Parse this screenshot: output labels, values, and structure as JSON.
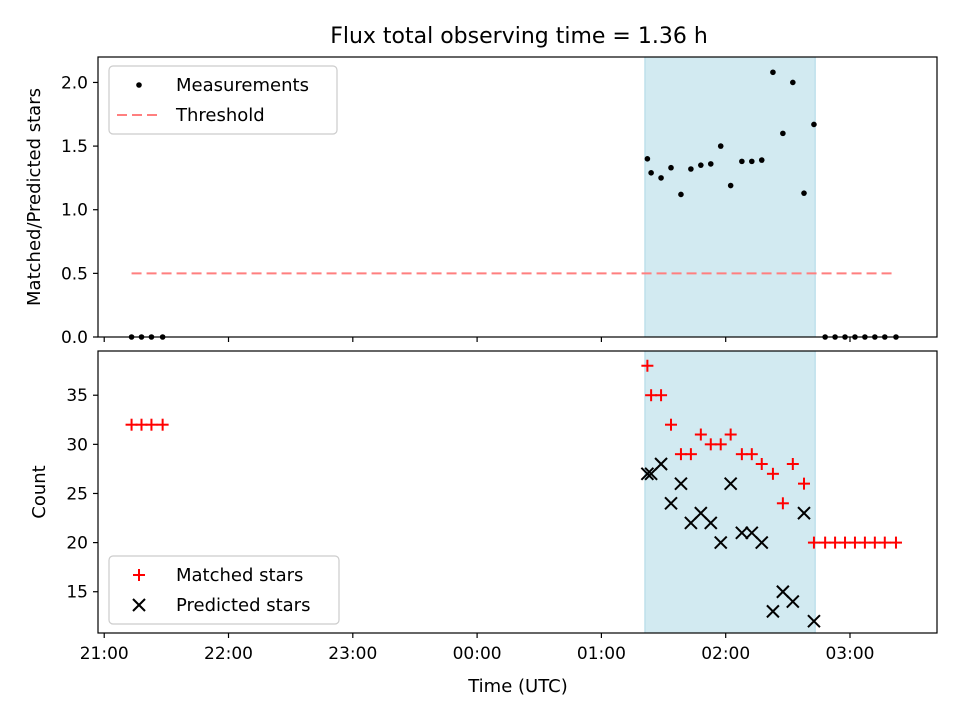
{
  "figure": {
    "title": "Flux total observing time = 1.36 h",
    "xlabel": "Time (UTC)",
    "xticks": [
      "21:00",
      "22:00",
      "23:00",
      "00:00",
      "01:00",
      "02:00",
      "03:00"
    ],
    "xlim_hours": [
      20.95,
      27.7
    ],
    "xticks_hours": [
      21,
      22,
      23,
      24,
      25,
      26,
      27
    ],
    "shaded_span_hours": [
      25.35,
      26.72
    ],
    "shade_color": "#add8e6",
    "grid": false
  },
  "chart_data": [
    {
      "type": "scatter",
      "ylabel": "Matched/Predicted stars",
      "ylim": [
        0,
        2.2
      ],
      "yticks": [
        0.0,
        0.5,
        1.0,
        1.5,
        2.0
      ],
      "ytick_labels": [
        "0.0",
        "0.5",
        "1.0",
        "1.5",
        "2.0"
      ],
      "legend_position": "upper left",
      "series": [
        {
          "name": "Measurements",
          "marker": "dot",
          "color": "#000000",
          "x": [
            21.22,
            21.3,
            21.38,
            21.47,
            25.37,
            25.4,
            25.48,
            25.56,
            25.64,
            25.72,
            25.8,
            25.88,
            25.96,
            26.04,
            26.13,
            26.21,
            26.29,
            26.38,
            26.46,
            26.54,
            26.63,
            26.71,
            26.8,
            26.88,
            26.96,
            27.04,
            27.12,
            27.2,
            27.28,
            27.37
          ],
          "y": [
            0,
            0,
            0,
            0,
            1.4,
            1.29,
            1.25,
            1.33,
            1.12,
            1.32,
            1.35,
            1.36,
            1.5,
            1.19,
            1.38,
            1.38,
            1.39,
            2.08,
            1.6,
            2.0,
            1.13,
            1.67,
            0,
            0,
            0,
            0,
            0,
            0,
            0,
            0
          ]
        },
        {
          "name": "Threshold",
          "marker": "dashed-line",
          "color": "#ff7f7f",
          "x": [
            21.22,
            27.37
          ],
          "y": [
            0.5,
            0.5
          ]
        }
      ]
    },
    {
      "type": "scatter",
      "ylabel": "Count",
      "ylim": [
        10.8,
        39.5
      ],
      "yticks": [
        15,
        20,
        25,
        30,
        35
      ],
      "ytick_labels": [
        "15",
        "20",
        "25",
        "30",
        "35"
      ],
      "legend_position": "lower left",
      "series": [
        {
          "name": "Matched stars",
          "marker": "plus",
          "color": "#ff0000",
          "x": [
            21.22,
            21.3,
            21.38,
            21.47,
            25.37,
            25.4,
            25.48,
            25.56,
            25.64,
            25.72,
            25.8,
            25.88,
            25.96,
            26.04,
            26.13,
            26.21,
            26.29,
            26.38,
            26.46,
            26.54,
            26.63,
            26.71,
            26.8,
            26.88,
            26.96,
            27.04,
            27.12,
            27.2,
            27.28,
            27.37
          ],
          "y": [
            32,
            32,
            32,
            32,
            38,
            35,
            35,
            32,
            29,
            29,
            31,
            30,
            30,
            31,
            29,
            29,
            28,
            27,
            24,
            28,
            26,
            20,
            20,
            20,
            20,
            20,
            20,
            20,
            20,
            20
          ]
        },
        {
          "name": "Predicted stars",
          "marker": "x",
          "color": "#000000",
          "x": [
            25.37,
            25.4,
            25.48,
            25.56,
            25.64,
            25.72,
            25.8,
            25.88,
            25.96,
            26.04,
            26.13,
            26.21,
            26.29,
            26.38,
            26.46,
            26.54,
            26.63,
            26.71
          ],
          "y": [
            27,
            27,
            28,
            24,
            26,
            22,
            23,
            22,
            20,
            26,
            21,
            21,
            20,
            13,
            15,
            14,
            23,
            12
          ]
        }
      ]
    }
  ]
}
